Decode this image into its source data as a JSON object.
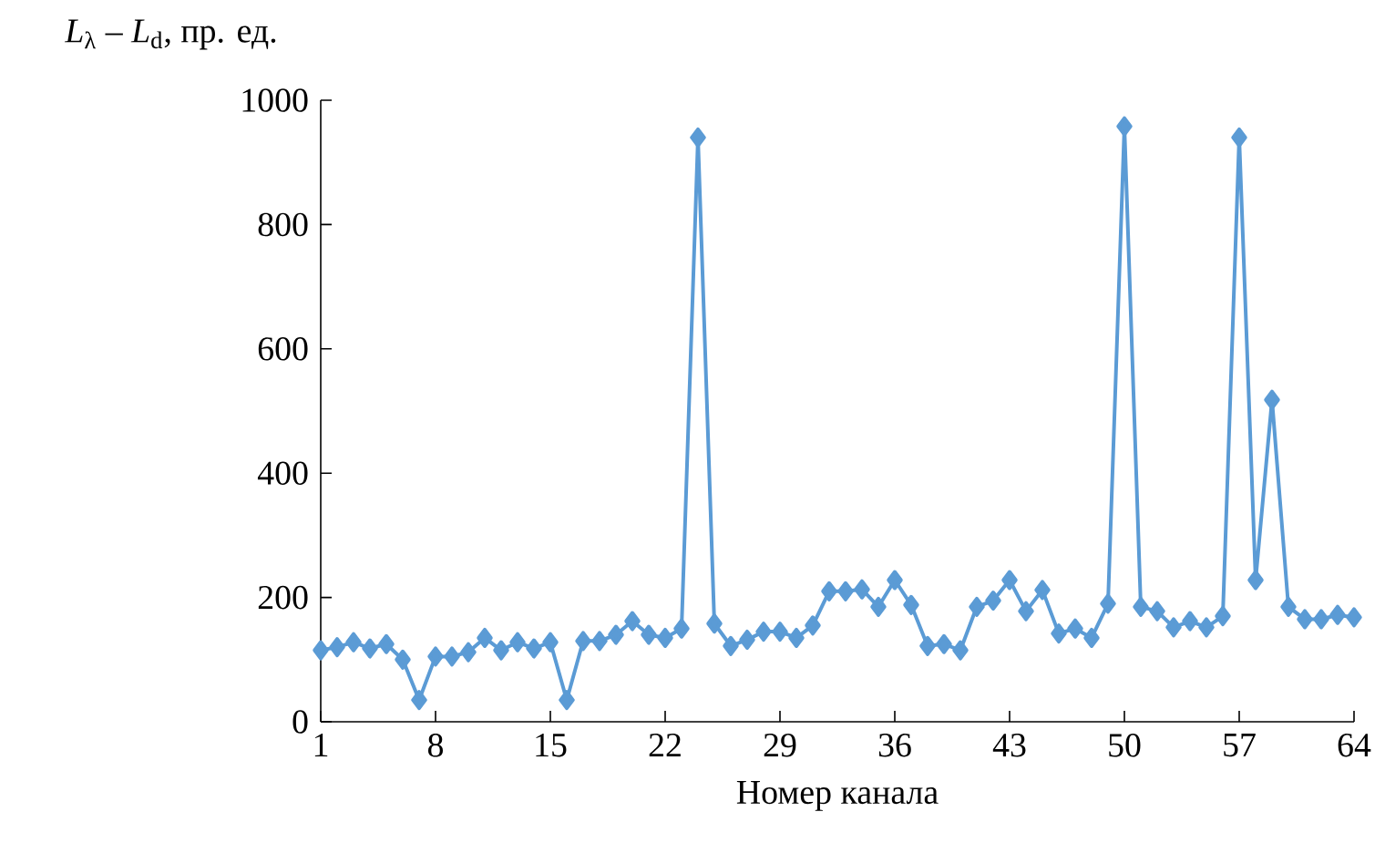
{
  "chart_data": {
    "type": "line",
    "xlabel": "Номер канала",
    "ylabel": "*L*$_{λ}$ – *L*$_{d}$, пр. ед.",
    "x": [
      1,
      2,
      3,
      4,
      5,
      6,
      7,
      8,
      9,
      10,
      11,
      12,
      13,
      14,
      15,
      16,
      17,
      18,
      19,
      20,
      21,
      22,
      23,
      24,
      25,
      26,
      27,
      28,
      29,
      30,
      31,
      32,
      33,
      34,
      35,
      36,
      37,
      38,
      39,
      40,
      41,
      42,
      43,
      44,
      45,
      46,
      47,
      48,
      49,
      50,
      51,
      52,
      53,
      54,
      55,
      56,
      57,
      58,
      59,
      60,
      61,
      62,
      63,
      64
    ],
    "values": [
      115,
      120,
      128,
      118,
      125,
      100,
      35,
      105,
      105,
      112,
      135,
      115,
      128,
      118,
      128,
      35,
      130,
      130,
      140,
      162,
      140,
      135,
      150,
      940,
      158,
      122,
      132,
      145,
      145,
      135,
      155,
      210,
      210,
      213,
      185,
      228,
      188,
      122,
      125,
      115,
      185,
      195,
      228,
      178,
      212,
      142,
      150,
      135,
      190,
      958,
      185,
      178,
      152,
      162,
      152,
      170,
      940,
      228,
      518,
      185,
      165,
      165,
      172,
      168
    ],
    "color": "#5b9bd5",
    "marker": "diamond",
    "line_style": "solid",
    "xlim": [
      1,
      64
    ],
    "xticks": [
      1,
      8,
      15,
      22,
      29,
      36,
      43,
      50,
      57,
      64
    ],
    "ylim": [
      0,
      1000
    ],
    "yticks": [
      0,
      200,
      400,
      600,
      800,
      1000
    ]
  }
}
